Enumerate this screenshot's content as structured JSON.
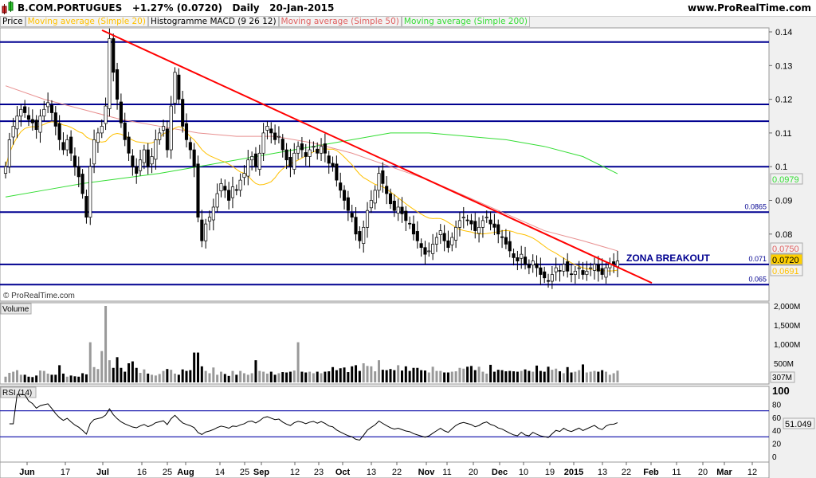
{
  "header": {
    "instrument": "B.COM.PORTUGUES",
    "change": "+1.27% (0.0720)",
    "period": "Daily",
    "date": "20-Jan-2015",
    "site": "www.ProRealTime.com"
  },
  "legend": [
    {
      "label": "Price",
      "color": "#000000"
    },
    {
      "label": "Moving average (Simple 20)",
      "color": "#ffc000"
    },
    {
      "label": "Histogramme MACD (9 26 12)",
      "color": "#000000"
    },
    {
      "label": "Moving average (Simple 50)",
      "color": "#e06060"
    },
    {
      "label": "Moving average (Simple 200)",
      "color": "#33dd33"
    }
  ],
  "copyright": "© ProRealTime.com",
  "annotation": "ZONA BREAKOUT",
  "chart_data": [
    {
      "type": "candlestick",
      "panel": "price",
      "ylim": [
        0.062,
        0.143
      ],
      "yticks": [
        "0.14",
        "0.13",
        "0.12",
        "0.11",
        "0.1",
        "0.09",
        "0.08"
      ],
      "ytick_values": [
        0.14,
        0.13,
        0.12,
        0.11,
        0.1,
        0.09,
        0.08
      ],
      "closes": [
        0.1,
        0.108,
        0.112,
        0.115,
        0.117,
        0.116,
        0.114,
        0.113,
        0.111,
        0.115,
        0.117,
        0.119,
        0.116,
        0.112,
        0.108,
        0.105,
        0.108,
        0.104,
        0.1,
        0.097,
        0.092,
        0.085,
        0.1,
        0.108,
        0.11,
        0.112,
        0.118,
        0.138,
        0.128,
        0.12,
        0.113,
        0.108,
        0.104,
        0.1,
        0.098,
        0.102,
        0.105,
        0.1,
        0.103,
        0.108,
        0.11,
        0.112,
        0.105,
        0.118,
        0.128,
        0.12,
        0.112,
        0.108,
        0.105,
        0.1,
        0.085,
        0.078,
        0.083,
        0.085,
        0.088,
        0.092,
        0.095,
        0.093,
        0.09,
        0.094,
        0.093,
        0.096,
        0.098,
        0.102,
        0.103,
        0.1,
        0.104,
        0.11,
        0.112,
        0.11,
        0.108,
        0.109,
        0.105,
        0.102,
        0.1,
        0.104,
        0.106,
        0.105,
        0.103,
        0.105,
        0.106,
        0.104,
        0.106,
        0.104,
        0.101,
        0.1,
        0.096,
        0.093,
        0.09,
        0.087,
        0.085,
        0.08,
        0.078,
        0.082,
        0.087,
        0.09,
        0.093,
        0.098,
        0.095,
        0.092,
        0.089,
        0.087,
        0.088,
        0.086,
        0.084,
        0.083,
        0.08,
        0.078,
        0.076,
        0.074,
        0.075,
        0.077,
        0.079,
        0.081,
        0.078,
        0.076,
        0.079,
        0.082,
        0.084,
        0.085,
        0.084,
        0.083,
        0.081,
        0.082,
        0.084,
        0.085,
        0.083,
        0.082,
        0.08,
        0.079,
        0.077,
        0.075,
        0.073,
        0.072,
        0.074,
        0.071,
        0.07,
        0.072,
        0.07,
        0.068,
        0.067,
        0.066,
        0.068,
        0.07,
        0.069,
        0.071,
        0.069,
        0.068,
        0.069,
        0.07,
        0.068,
        0.069,
        0.07,
        0.071,
        0.069,
        0.068,
        0.07,
        0.071,
        0.0711,
        0.072
      ],
      "ma50_every10": [
        0.124,
        0.12,
        0.117,
        0.114,
        0.112,
        0.11,
        0.109,
        0.109,
        0.107,
        0.104,
        0.1,
        0.096,
        0.091,
        0.086,
        0.081,
        0.078,
        0.075
      ],
      "ma200_every10": [
        0.091,
        0.093,
        0.095,
        0.0965,
        0.098,
        0.1,
        0.102,
        0.104,
        0.106,
        0.108,
        0.11,
        0.11,
        0.109,
        0.108,
        0.106,
        0.103,
        0.0979
      ],
      "levels": [
        {
          "value": 0.137
        },
        {
          "value": 0.1185
        },
        {
          "value": 0.1135
        },
        {
          "value": 0.1
        },
        {
          "value": 0.0865,
          "label": "0.0865"
        },
        {
          "value": 0.071,
          "label": "0.071"
        },
        {
          "value": 0.065,
          "label": "0.065"
        }
      ],
      "trendline": {
        "from": 0.1405,
        "to": 0.0655,
        "color": "#ff0000"
      },
      "last_values": [
        {
          "label": "0.0979",
          "color": "#33dd33"
        },
        {
          "label": "0.0750",
          "color": "#e06060"
        },
        {
          "label": "0.0720",
          "color": "#000000",
          "bg": "#ffd000"
        },
        {
          "label": "0.0691",
          "color": "#ffc000"
        }
      ]
    },
    {
      "type": "bar",
      "panel": "volume",
      "title": "Volume",
      "ylim": [
        0,
        2000
      ],
      "yticks": [
        "2,000M",
        "1,500M",
        "1,000M",
        "500M"
      ],
      "ytick_values": [
        2000,
        1500,
        1000,
        500
      ],
      "last_label": "307M",
      "values": [
        150,
        250,
        280,
        320,
        200,
        200,
        150,
        140,
        180,
        310,
        300,
        230,
        200,
        200,
        450,
        230,
        150,
        180,
        160,
        150,
        240,
        210,
        1050,
        400,
        350,
        820,
        2000,
        580,
        380,
        660,
        380,
        280,
        500,
        550,
        380,
        250,
        340,
        230,
        200,
        180,
        220,
        300,
        350,
        330,
        230,
        200,
        340,
        300,
        320,
        780,
        780,
        420,
        300,
        240,
        390,
        200,
        280,
        220,
        170,
        300,
        200,
        300,
        240,
        200,
        240,
        580,
        300,
        280,
        230,
        280,
        200,
        240,
        270,
        260,
        280,
        310,
        1050,
        280,
        260,
        280,
        240,
        280,
        240,
        280,
        290,
        400,
        320,
        370,
        390,
        270,
        420,
        450,
        300,
        500,
        430,
        420,
        290,
        580,
        330,
        320,
        350,
        320,
        450,
        310,
        420,
        300,
        380,
        380,
        320,
        310,
        260,
        410,
        300,
        300,
        260,
        260,
        280,
        290,
        380,
        360,
        410,
        430,
        320,
        410,
        280,
        230,
        460,
        280,
        330,
        320,
        290,
        300,
        290,
        280,
        300,
        340,
        300,
        280,
        440,
        300,
        280,
        410,
        330,
        360,
        290,
        240,
        400,
        260,
        280,
        320,
        470,
        260,
        280,
        300,
        280,
        320,
        280,
        200,
        240,
        307
      ]
    },
    {
      "type": "line",
      "panel": "rsi",
      "title": "RSI (14)",
      "ylim": [
        0,
        100
      ],
      "yticks": [
        "100",
        "80",
        "60",
        "40",
        "20",
        "0"
      ],
      "ytick_values": [
        100,
        80,
        60,
        40,
        20,
        0
      ],
      "bands": [
        70,
        30
      ],
      "last_label": "51.049"
    }
  ],
  "xaxis": {
    "labels": [
      "Jun",
      "17",
      "Jul",
      "16",
      "25",
      "Aug",
      "14",
      "25",
      "Sep",
      "12",
      "23",
      "Oct",
      "13",
      "22",
      "Nov",
      "11",
      "20",
      "Dec",
      "10",
      "19",
      "2015",
      "13",
      "22",
      "Feb",
      "11",
      "20",
      "Mar",
      "12"
    ],
    "bold": [
      "Jun",
      "Jul",
      "Aug",
      "Sep",
      "Oct",
      "Nov",
      "Dec",
      "2015",
      "Feb",
      "Mar"
    ]
  }
}
